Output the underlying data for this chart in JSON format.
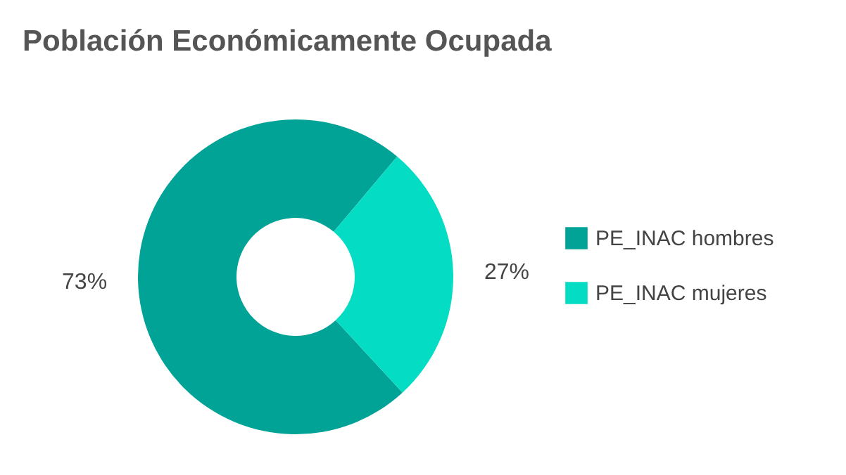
{
  "chart_data": {
    "type": "donut",
    "title": "Población Económicamente Ocupada",
    "categories": [
      "PE_INAC hombres",
      "PE_INAC mujeres"
    ],
    "values": [
      73,
      27
    ],
    "colors": [
      "#00a396",
      "#05dcc4"
    ],
    "value_labels": [
      "73%",
      "27%"
    ],
    "legend": "right"
  }
}
